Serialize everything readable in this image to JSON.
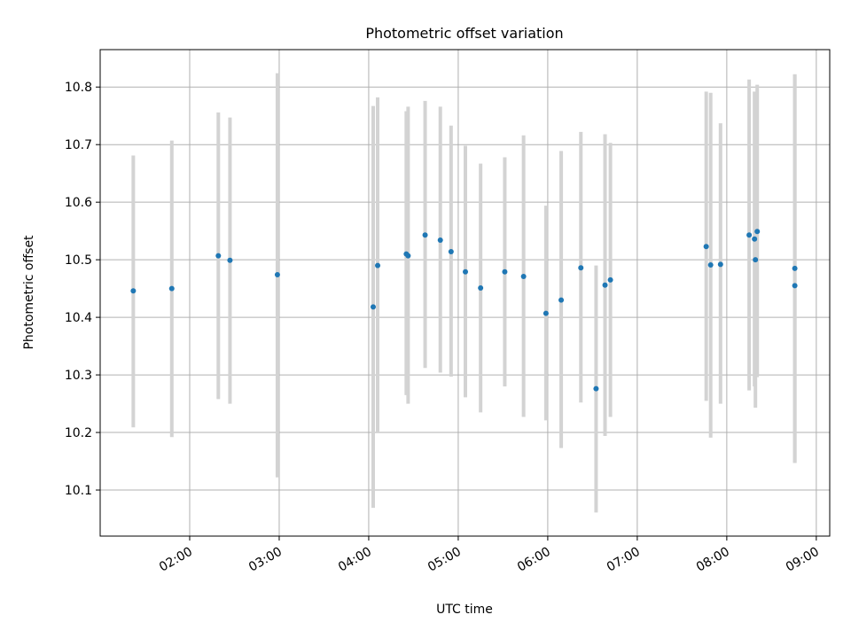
{
  "chart_data": {
    "type": "scatter",
    "title": "Photometric offset variation",
    "xlabel": "UTC time",
    "ylabel": "Photometric offset",
    "grid": true,
    "x_range_hours": [
      1.0,
      9.15
    ],
    "ylim": [
      10.02,
      10.865
    ],
    "xtick_values": [
      2,
      3,
      4,
      5,
      6,
      7,
      8,
      9
    ],
    "xtick_labels": [
      "02:00",
      "03:00",
      "04:00",
      "05:00",
      "06:00",
      "07:00",
      "08:00",
      "09:00"
    ],
    "ytick_values": [
      10.1,
      10.2,
      10.3,
      10.4,
      10.5,
      10.6,
      10.7,
      10.8
    ],
    "ytick_labels": [
      "10.1",
      "10.2",
      "10.3",
      "10.4",
      "10.5",
      "10.6",
      "10.7",
      "10.8"
    ],
    "point_color": "#1f77b4",
    "errorbar_color": "#d3d3d3",
    "x_units": "hours UTC",
    "points": [
      {
        "x": 1.37,
        "y": 10.446,
        "err_low": 10.209,
        "err_high": 10.681
      },
      {
        "x": 1.8,
        "y": 10.45,
        "err_low": 10.192,
        "err_high": 10.707
      },
      {
        "x": 2.32,
        "y": 10.507,
        "err_low": 10.258,
        "err_high": 10.756
      },
      {
        "x": 2.45,
        "y": 10.499,
        "err_low": 10.25,
        "err_high": 10.747
      },
      {
        "x": 2.98,
        "y": 10.474,
        "err_low": 10.122,
        "err_high": 10.824
      },
      {
        "x": 4.05,
        "y": 10.418,
        "err_low": 10.069,
        "err_high": 10.767
      },
      {
        "x": 4.1,
        "y": 10.49,
        "err_low": 10.2,
        "err_high": 10.782
      },
      {
        "x": 4.42,
        "y": 10.51,
        "err_low": 10.265,
        "err_high": 10.758
      },
      {
        "x": 4.44,
        "y": 10.507,
        "err_low": 10.25,
        "err_high": 10.766
      },
      {
        "x": 4.63,
        "y": 10.543,
        "err_low": 10.312,
        "err_high": 10.776
      },
      {
        "x": 4.8,
        "y": 10.534,
        "err_low": 10.304,
        "err_high": 10.766
      },
      {
        "x": 4.92,
        "y": 10.514,
        "err_low": 10.297,
        "err_high": 10.733
      },
      {
        "x": 5.08,
        "y": 10.479,
        "err_low": 10.261,
        "err_high": 10.698
      },
      {
        "x": 5.25,
        "y": 10.451,
        "err_low": 10.235,
        "err_high": 10.667
      },
      {
        "x": 5.52,
        "y": 10.479,
        "err_low": 10.28,
        "err_high": 10.678
      },
      {
        "x": 5.73,
        "y": 10.471,
        "err_low": 10.227,
        "err_high": 10.716
      },
      {
        "x": 5.98,
        "y": 10.407,
        "err_low": 10.221,
        "err_high": 10.594
      },
      {
        "x": 6.15,
        "y": 10.43,
        "err_low": 10.173,
        "err_high": 10.689
      },
      {
        "x": 6.37,
        "y": 10.486,
        "err_low": 10.252,
        "err_high": 10.722
      },
      {
        "x": 6.54,
        "y": 10.276,
        "err_low": 10.061,
        "err_high": 10.49
      },
      {
        "x": 6.64,
        "y": 10.456,
        "err_low": 10.194,
        "err_high": 10.718
      },
      {
        "x": 6.7,
        "y": 10.465,
        "err_low": 10.227,
        "err_high": 10.703
      },
      {
        "x": 7.77,
        "y": 10.523,
        "err_low": 10.255,
        "err_high": 10.792
      },
      {
        "x": 7.82,
        "y": 10.491,
        "err_low": 10.191,
        "err_high": 10.79
      },
      {
        "x": 7.93,
        "y": 10.492,
        "err_low": 10.25,
        "err_high": 10.737
      },
      {
        "x": 8.25,
        "y": 10.543,
        "err_low": 10.273,
        "err_high": 10.813
      },
      {
        "x": 8.31,
        "y": 10.536,
        "err_low": 10.28,
        "err_high": 10.792
      },
      {
        "x": 8.32,
        "y": 10.5,
        "err_low": 10.243,
        "err_high": 10.757
      },
      {
        "x": 8.34,
        "y": 10.549,
        "err_low": 10.296,
        "err_high": 10.804
      },
      {
        "x": 8.76,
        "y": 10.485,
        "err_low": 10.147,
        "err_high": 10.822
      },
      {
        "x": 8.76,
        "y": 10.455,
        "err_low": 10.147,
        "err_high": 10.822
      }
    ]
  }
}
